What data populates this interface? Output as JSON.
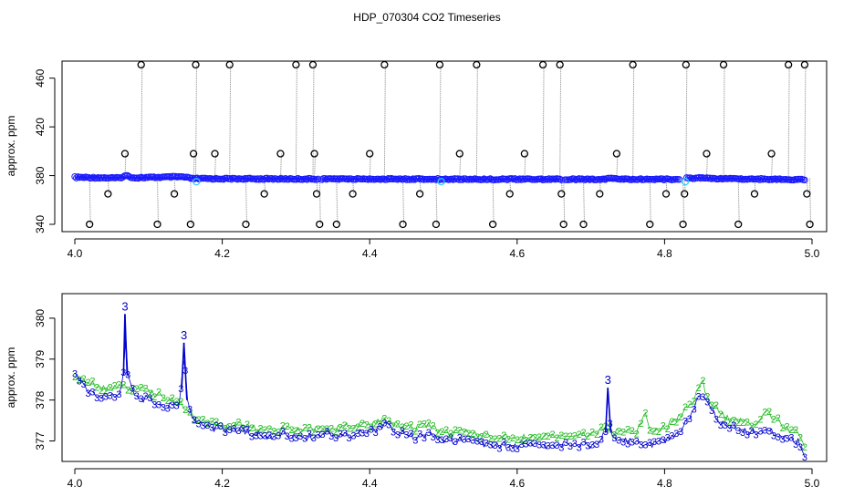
{
  "figure": {
    "title": "HDP_070304  CO2 Timeseries"
  },
  "chart_data": [
    {
      "type": "scatter",
      "title": "",
      "xlabel": "",
      "ylabel": "approx. ppm",
      "xlim": [
        4.0,
        5.0
      ],
      "ylim": [
        334,
        474
      ],
      "x_ticks": [
        4.0,
        4.2,
        4.4,
        4.6,
        4.8,
        5.0
      ],
      "x_tick_labels": [
        "4.0",
        "4.2",
        "4.4",
        "4.6",
        "4.8",
        "5.0"
      ],
      "y_ticks": [
        340,
        380,
        420,
        460
      ],
      "y_tick_labels": [
        "340",
        "380",
        "420",
        "460"
      ],
      "grid": false,
      "legend": "none",
      "colors": {
        "baseline": "#1a1aff",
        "outlier": "#000000",
        "flagged": "#33ccff",
        "spike_line": "#888888"
      },
      "baseline_segments": [
        {
          "x": [
            4.0,
            4.06,
            4.07,
            4.08,
            4.145,
            4.16,
            4.33
          ],
          "y": [
            378.6,
            378.0,
            380.0,
            378.2,
            379.0,
            377.5,
            377.2
          ]
        },
        {
          "x": [
            4.335,
            4.5,
            4.66
          ],
          "y": [
            377.2,
            377.1,
            377.0
          ]
        },
        {
          "x": [
            4.665,
            4.72,
            4.73,
            4.74,
            4.82
          ],
          "y": [
            377.0,
            377.0,
            378.0,
            377.0,
            377.0
          ]
        },
        {
          "x": [
            4.83,
            4.85,
            4.9,
            4.99
          ],
          "y": [
            378.0,
            378.0,
            377.3,
            376.8
          ]
        }
      ],
      "outliers": [
        {
          "x": 4.02,
          "y": 340
        },
        {
          "x": 4.045,
          "y": 365
        },
        {
          "x": 4.068,
          "y": 398
        },
        {
          "x": 4.09,
          "y": 471
        },
        {
          "x": 4.112,
          "y": 340
        },
        {
          "x": 4.135,
          "y": 365
        },
        {
          "x": 4.157,
          "y": 340
        },
        {
          "x": 4.161,
          "y": 398
        },
        {
          "x": 4.164,
          "y": 471
        },
        {
          "x": 4.19,
          "y": 398
        },
        {
          "x": 4.21,
          "y": 471
        },
        {
          "x": 4.232,
          "y": 340
        },
        {
          "x": 4.257,
          "y": 365
        },
        {
          "x": 4.279,
          "y": 398
        },
        {
          "x": 4.3,
          "y": 471
        },
        {
          "x": 4.323,
          "y": 471
        },
        {
          "x": 4.325,
          "y": 398
        },
        {
          "x": 4.328,
          "y": 365
        },
        {
          "x": 4.332,
          "y": 340
        },
        {
          "x": 4.355,
          "y": 340
        },
        {
          "x": 4.377,
          "y": 365
        },
        {
          "x": 4.4,
          "y": 398
        },
        {
          "x": 4.42,
          "y": 471
        },
        {
          "x": 4.445,
          "y": 340
        },
        {
          "x": 4.468,
          "y": 365
        },
        {
          "x": 4.49,
          "y": 340
        },
        {
          "x": 4.495,
          "y": 471
        },
        {
          "x": 4.522,
          "y": 398
        },
        {
          "x": 4.545,
          "y": 471
        },
        {
          "x": 4.567,
          "y": 340
        },
        {
          "x": 4.59,
          "y": 365
        },
        {
          "x": 4.61,
          "y": 398
        },
        {
          "x": 4.635,
          "y": 471
        },
        {
          "x": 4.658,
          "y": 471
        },
        {
          "x": 4.66,
          "y": 365
        },
        {
          "x": 4.663,
          "y": 340
        },
        {
          "x": 4.69,
          "y": 340
        },
        {
          "x": 4.712,
          "y": 365
        },
        {
          "x": 4.735,
          "y": 398
        },
        {
          "x": 4.757,
          "y": 471
        },
        {
          "x": 4.78,
          "y": 340
        },
        {
          "x": 4.802,
          "y": 365
        },
        {
          "x": 4.825,
          "y": 340
        },
        {
          "x": 4.827,
          "y": 365
        },
        {
          "x": 4.829,
          "y": 471
        },
        {
          "x": 4.857,
          "y": 398
        },
        {
          "x": 4.88,
          "y": 471
        },
        {
          "x": 4.9,
          "y": 340
        },
        {
          "x": 4.922,
          "y": 365
        },
        {
          "x": 4.945,
          "y": 398
        },
        {
          "x": 4.968,
          "y": 471
        },
        {
          "x": 4.99,
          "y": 471
        },
        {
          "x": 4.993,
          "y": 365
        },
        {
          "x": 4.997,
          "y": 340
        }
      ],
      "flagged_points": [
        {
          "x": 4.165,
          "y": 375
        },
        {
          "x": 4.497,
          "y": 375
        },
        {
          "x": 4.828,
          "y": 375
        }
      ]
    },
    {
      "type": "line",
      "title": "",
      "xlabel": "",
      "ylabel": "approx. ppm",
      "xlim": [
        4.0,
        5.0
      ],
      "ylim": [
        376.5,
        380.6
      ],
      "x_ticks": [
        4.0,
        4.2,
        4.4,
        4.6,
        4.8,
        5.0
      ],
      "x_tick_labels": [
        "4.0",
        "4.2",
        "4.4",
        "4.6",
        "4.8",
        "5.0"
      ],
      "y_ticks": [
        377,
        378,
        379,
        380
      ],
      "y_tick_labels": [
        "377",
        "378",
        "379",
        "380"
      ],
      "grid": false,
      "legend": "none",
      "series": [
        {
          "marker": "3",
          "color": "#0000cc",
          "x": [
            4.0,
            4.02,
            4.04,
            4.06,
            4.066,
            4.068,
            4.071,
            4.08,
            4.1,
            4.12,
            4.14,
            4.145,
            4.148,
            4.152,
            4.16,
            4.18,
            4.2,
            4.22,
            4.24,
            4.26,
            4.28,
            4.3,
            4.32,
            4.34,
            4.36,
            4.38,
            4.4,
            4.42,
            4.44,
            4.46,
            4.48,
            4.5,
            4.52,
            4.54,
            4.56,
            4.58,
            4.6,
            4.62,
            4.64,
            4.66,
            4.68,
            4.7,
            4.71,
            4.72,
            4.723,
            4.727,
            4.74,
            4.76,
            4.78,
            4.8,
            4.82,
            4.84,
            4.85,
            4.86,
            4.88,
            4.9,
            4.92,
            4.94,
            4.96,
            4.98,
            4.99
          ],
          "y": [
            378.6,
            378.2,
            378.1,
            378.1,
            378.6,
            380.1,
            378.6,
            378.1,
            378.0,
            377.9,
            377.8,
            378.3,
            379.4,
            378.0,
            377.5,
            377.3,
            377.3,
            377.3,
            377.2,
            377.1,
            377.2,
            377.1,
            377.1,
            377.2,
            377.1,
            377.2,
            377.2,
            377.4,
            377.2,
            377.1,
            377.2,
            377.0,
            377.0,
            377.0,
            376.9,
            376.9,
            376.9,
            376.9,
            376.9,
            376.9,
            376.9,
            376.9,
            377.0,
            377.2,
            378.3,
            377.2,
            377.0,
            377.0,
            376.9,
            377.0,
            377.2,
            377.8,
            378.2,
            377.8,
            377.4,
            377.3,
            377.2,
            377.3,
            377.1,
            377.0,
            376.7
          ]
        },
        {
          "marker": "2",
          "color": "#22bb22",
          "x": [
            4.0,
            4.02,
            4.04,
            4.06,
            4.08,
            4.1,
            4.12,
            4.14,
            4.16,
            4.18,
            4.2,
            4.22,
            4.24,
            4.26,
            4.28,
            4.3,
            4.32,
            4.34,
            4.36,
            4.38,
            4.4,
            4.42,
            4.44,
            4.46,
            4.48,
            4.5,
            4.52,
            4.54,
            4.56,
            4.58,
            4.6,
            4.62,
            4.64,
            4.66,
            4.68,
            4.7,
            4.72,
            4.74,
            4.76,
            4.775,
            4.78,
            4.8,
            4.82,
            4.84,
            4.85,
            4.86,
            4.88,
            4.9,
            4.92,
            4.94,
            4.96,
            4.98,
            4.99
          ],
          "y": [
            378.6,
            378.4,
            378.3,
            378.3,
            378.3,
            378.2,
            378.1,
            378.0,
            377.6,
            377.4,
            377.4,
            377.4,
            377.3,
            377.3,
            377.3,
            377.3,
            377.3,
            377.3,
            377.3,
            377.4,
            377.4,
            377.5,
            377.4,
            377.3,
            377.4,
            377.2,
            377.2,
            377.2,
            377.1,
            377.1,
            377.1,
            377.1,
            377.1,
            377.1,
            377.1,
            377.2,
            377.3,
            377.2,
            377.2,
            377.7,
            377.3,
            377.3,
            377.6,
            378.0,
            378.5,
            378.0,
            377.6,
            377.5,
            377.4,
            377.7,
            377.4,
            377.2,
            376.8
          ]
        }
      ],
      "annotations": [
        "3",
        "3",
        "3",
        "2"
      ]
    }
  ]
}
